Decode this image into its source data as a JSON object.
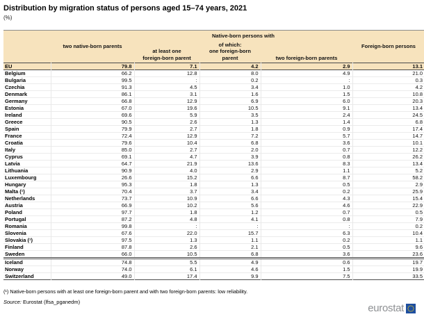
{
  "page": {
    "title": "Distribution by migration status of persons aged 15–74 years, 2021",
    "unit": "(%)"
  },
  "chart_data": {
    "type": "table",
    "title": "Distribution by migration status of persons aged 15–74 years, 2021",
    "unit": "(%)",
    "column_group": "Native-born persons with",
    "columns": [
      "",
      "two native-born parents",
      "at least one foreign-born parent",
      "of which: one foreign-born parent",
      "two foreign-born parents",
      "Foreign-born persons"
    ],
    "missing_symbol": ":",
    "rows": [
      {
        "country": "EU",
        "values": [
          "79.8",
          "7.1",
          "4.2",
          "2.9",
          "13.1"
        ],
        "highlight": true
      },
      {
        "country": "Belgium",
        "values": [
          "66.2",
          "12.8",
          "8.0",
          "4.9",
          "21.0"
        ]
      },
      {
        "country": "Bulgaria",
        "values": [
          "99.5",
          ":",
          "0.2",
          ":",
          "0.3"
        ]
      },
      {
        "country": "Czechia",
        "values": [
          "91.3",
          "4.5",
          "3.4",
          "1.0",
          "4.2"
        ]
      },
      {
        "country": "Denmark",
        "values": [
          "86.1",
          "3.1",
          "1.6",
          "1.5",
          "10.8"
        ]
      },
      {
        "country": "Germany",
        "values": [
          "66.8",
          "12.9",
          "6.9",
          "6.0",
          "20.3"
        ]
      },
      {
        "country": "Estonia",
        "values": [
          "67.0",
          "19.6",
          "10.5",
          "9.1",
          "13.4"
        ]
      },
      {
        "country": "Ireland",
        "values": [
          "69.6",
          "5.9",
          "3.5",
          "2.4",
          "24.5"
        ]
      },
      {
        "country": "Greece",
        "values": [
          "90.5",
          "2.6",
          "1.3",
          "1.4",
          "6.8"
        ]
      },
      {
        "country": "Spain",
        "values": [
          "79.9",
          "2.7",
          "1.8",
          "0.9",
          "17.4"
        ]
      },
      {
        "country": "France",
        "values": [
          "72.4",
          "12.9",
          "7.2",
          "5.7",
          "14.7"
        ]
      },
      {
        "country": "Croatia",
        "values": [
          "79.6",
          "10.4",
          "6.8",
          "3.6",
          "10.1"
        ]
      },
      {
        "country": "Italy",
        "values": [
          "85.0",
          "2.7",
          "2.0",
          "0.7",
          "12.2"
        ]
      },
      {
        "country": "Cyprus",
        "values": [
          "69.1",
          "4.7",
          "3.9",
          "0.8",
          "26.2"
        ]
      },
      {
        "country": "Latvia",
        "values": [
          "64.7",
          "21.9",
          "13.6",
          "8.3",
          "13.4"
        ]
      },
      {
        "country": "Lithuania",
        "values": [
          "90.9",
          "4.0",
          "2.9",
          "1.1",
          "5.2"
        ]
      },
      {
        "country": "Luxembourg",
        "values": [
          "26.6",
          "15.2",
          "6.6",
          "8.7",
          "58.2"
        ]
      },
      {
        "country": "Hungary",
        "values": [
          "95.3",
          "1.8",
          "1.3",
          "0.5",
          "2.9"
        ]
      },
      {
        "country": "Malta (¹)",
        "values": [
          "70.4",
          "3.7",
          "3.4",
          "0.2",
          "25.9"
        ]
      },
      {
        "country": "Netherlands",
        "values": [
          "73.7",
          "10.9",
          "6.6",
          "4.3",
          "15.4"
        ]
      },
      {
        "country": "Austria",
        "values": [
          "66.9",
          "10.2",
          "5.6",
          "4.6",
          "22.9"
        ]
      },
      {
        "country": "Poland",
        "values": [
          "97.7",
          "1.8",
          "1.2",
          "0.7",
          "0.5"
        ]
      },
      {
        "country": "Portugal",
        "values": [
          "87.2",
          "4.8",
          "4.1",
          "0.8",
          "7.9"
        ]
      },
      {
        "country": "Romania",
        "values": [
          "99.8",
          ":",
          ":",
          ":",
          "0.2"
        ]
      },
      {
        "country": "Slovenia",
        "values": [
          "67.6",
          "22.0",
          "15.7",
          "6.3",
          "10.4"
        ]
      },
      {
        "country": "Slovakia (¹)",
        "values": [
          "97.5",
          "1.3",
          "1.1",
          "0.2",
          "1.1"
        ]
      },
      {
        "country": "Finland",
        "values": [
          "87.8",
          "2.6",
          "2.1",
          "0.5",
          "9.6"
        ]
      },
      {
        "country": "Sweden",
        "values": [
          "66.0",
          "10.5",
          "6.8",
          "3.6",
          "23.6"
        ]
      },
      {
        "country": "Iceland",
        "values": [
          "74.8",
          "5.5",
          "4.9",
          "0.6",
          "19.7"
        ],
        "separator_above": true
      },
      {
        "country": "Norway",
        "values": [
          "74.0",
          "6.1",
          "4.6",
          "1.5",
          "19.9"
        ]
      },
      {
        "country": "Switzerland",
        "values": [
          "49.0",
          "17.4",
          "9.9",
          "7.5",
          "33.5"
        ]
      }
    ]
  },
  "header_labels": {
    "two_native": "two native-born parents",
    "group": "Native-born persons with",
    "at_least_one": "at least one\nforeign-born parent",
    "of_which_one": "of which:\none foreign-born parent",
    "two_foreign": "two foreign-born parents",
    "foreign_born": "Foreign-born persons"
  },
  "footnote": "(¹) Native-born persons with at least one foreign-born parent and with two foreign-born parents: low reliability.",
  "source": {
    "label": "Source:",
    "text": "Eurostat (lfsa_pganedm)"
  },
  "logo": {
    "text": "eurostat"
  },
  "colors": {
    "header_bg": "#f7e3bd",
    "highlight_bg": "#f7e3bd",
    "dark_rule": "#4a4a4a",
    "light_rule": "#ebebeb",
    "logo_gray": "#8e9093",
    "logo_blue": "#1e4fa0",
    "star_yellow": "#ffd617"
  }
}
